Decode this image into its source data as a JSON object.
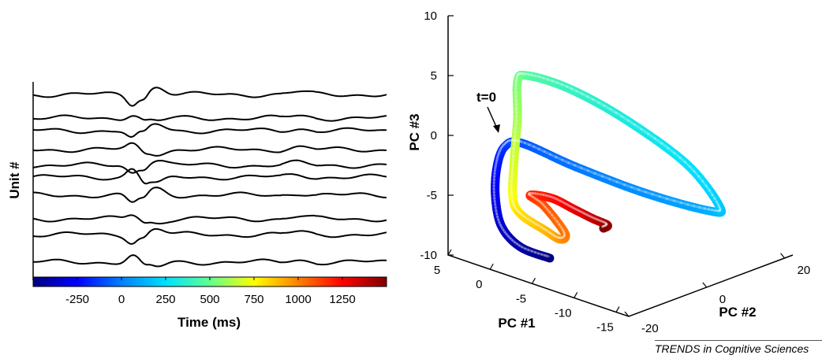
{
  "credit": "TRENDS in Cognitive Sciences",
  "chart_data": [
    {
      "type": "line",
      "ylabel": "Unit #",
      "xlabel": "Time (ms)",
      "xlim": [
        -500,
        1500
      ],
      "x_ticks": [
        "-250",
        "0",
        "250",
        "500",
        "750",
        "1000",
        "1250"
      ],
      "x_tick_values": [
        -250,
        0,
        250,
        500,
        750,
        1000,
        1250
      ],
      "colorbar_gradient": [
        "#00007f",
        "#0000ff",
        "#0080ff",
        "#00e0ff",
        "#60ff90",
        "#ffff00",
        "#ff8000",
        "#ff0000",
        "#7f0000"
      ],
      "trace_color": "#000000",
      "trace_count": 10
    },
    {
      "type": "line",
      "subtype": "3d-trajectory",
      "xlabel": "PC #1",
      "ylabel": "PC #2",
      "zlabel": "PC #3",
      "pc1_ticks": [
        "5",
        "0",
        "-5",
        "-10",
        "-15"
      ],
      "pc2_ticks": [
        "20",
        "0",
        "-20"
      ],
      "pc3_ticks": [
        "10",
        "5",
        "0",
        "-5",
        "-10"
      ],
      "annotation": "t=0",
      "color_map": "jet (time from -500 ms to 1500 ms)"
    }
  ]
}
